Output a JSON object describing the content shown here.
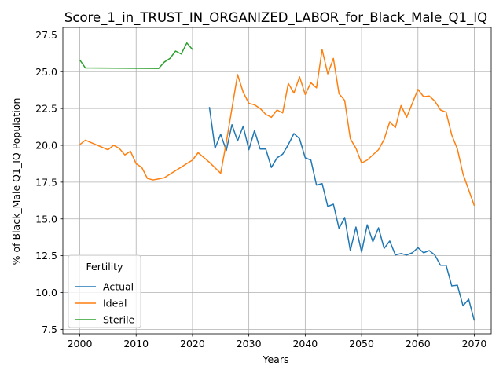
{
  "chart_data": {
    "type": "line",
    "title": "Score_1_in_TRUST_IN_ORGANIZED_LABOR_for_Black_Male_Q1_IQ",
    "xlabel": "Years",
    "ylabel": "% of Black_Male Q1_IQ Population",
    "xlim": [
      1997,
      2073
    ],
    "ylim": [
      7.2,
      28.0
    ],
    "xticks": [
      2000,
      2010,
      2020,
      2030,
      2040,
      2050,
      2060,
      2070
    ],
    "yticks": [
      7.5,
      10.0,
      12.5,
      15.0,
      17.5,
      20.0,
      22.5,
      25.0,
      27.5
    ],
    "xtick_labels": [
      "2000",
      "2010",
      "2020",
      "2030",
      "2040",
      "2050",
      "2060",
      "2070"
    ],
    "ytick_labels": [
      "7.5",
      "10.0",
      "12.5",
      "15.0",
      "17.5",
      "20.0",
      "22.5",
      "25.0",
      "27.5"
    ],
    "grid": true,
    "legend": {
      "title": "Fertility",
      "placement": "lower-left"
    },
    "series": [
      {
        "name": "Actual",
        "color": "#1f77b4",
        "x": [
          2023,
          2024,
          2025,
          2026,
          2027,
          2028,
          2029,
          2030,
          2031,
          2032,
          2033,
          2034,
          2035,
          2036,
          2037,
          2038,
          2039,
          2040,
          2041,
          2042,
          2043,
          2044,
          2045,
          2046,
          2047,
          2048,
          2049,
          2050,
          2051,
          2052,
          2053,
          2054,
          2055,
          2056,
          2057,
          2058,
          2059,
          2060,
          2061,
          2062,
          2063,
          2064,
          2065,
          2066,
          2067,
          2068,
          2069,
          2070
        ],
        "y": [
          22.6,
          19.8,
          20.75,
          19.65,
          21.4,
          20.3,
          21.3,
          19.7,
          21.0,
          19.75,
          19.75,
          18.5,
          19.15,
          19.4,
          20.05,
          20.8,
          20.45,
          19.15,
          19.0,
          17.3,
          17.4,
          15.85,
          16.0,
          14.35,
          15.1,
          12.85,
          14.45,
          12.75,
          14.6,
          13.45,
          14.4,
          13.0,
          13.5,
          12.55,
          12.65,
          12.55,
          12.7,
          13.05,
          12.7,
          12.85,
          12.55,
          11.85,
          11.85,
          10.45,
          10.5,
          9.1,
          9.55,
          8.1
        ]
      },
      {
        "name": "Ideal",
        "color": "#ff7f0e",
        "x": [
          2000,
          2001,
          2005,
          2006,
          2007,
          2008,
          2009,
          2010,
          2011,
          2012,
          2013,
          2014,
          2015,
          2020,
          2021,
          2023,
          2025,
          2026,
          2027,
          2028,
          2029,
          2030,
          2031,
          2032,
          2033,
          2034,
          2035,
          2036,
          2037,
          2038,
          2039,
          2040,
          2041,
          2042,
          2043,
          2044,
          2045,
          2046,
          2047,
          2048,
          2049,
          2050,
          2051,
          2053,
          2054,
          2055,
          2056,
          2057,
          2058,
          2060,
          2061,
          2062,
          2063,
          2064,
          2065,
          2066,
          2067,
          2068,
          2070
        ],
        "y": [
          20.05,
          20.35,
          19.7,
          20.0,
          19.8,
          19.35,
          19.6,
          18.75,
          18.5,
          17.75,
          17.65,
          17.72,
          17.8,
          19.0,
          19.5,
          18.85,
          18.1,
          20.2,
          22.5,
          24.8,
          23.6,
          22.85,
          22.75,
          22.5,
          22.1,
          21.9,
          22.4,
          22.2,
          24.2,
          23.55,
          24.65,
          23.45,
          24.25,
          23.9,
          26.5,
          24.85,
          25.9,
          23.5,
          23.05,
          20.45,
          19.8,
          18.8,
          19.0,
          19.7,
          20.4,
          21.6,
          21.2,
          22.7,
          21.9,
          23.8,
          23.3,
          23.35,
          23.0,
          22.4,
          22.25,
          20.7,
          19.75,
          18.05,
          15.9
        ]
      },
      {
        "name": "Sterile",
        "color": "#2ca02c",
        "x": [
          2000,
          2001,
          2014,
          2015,
          2016,
          2017,
          2018,
          2019,
          2020
        ],
        "y": [
          25.8,
          25.25,
          25.22,
          25.65,
          25.9,
          26.4,
          26.2,
          26.95,
          26.5
        ]
      }
    ]
  }
}
